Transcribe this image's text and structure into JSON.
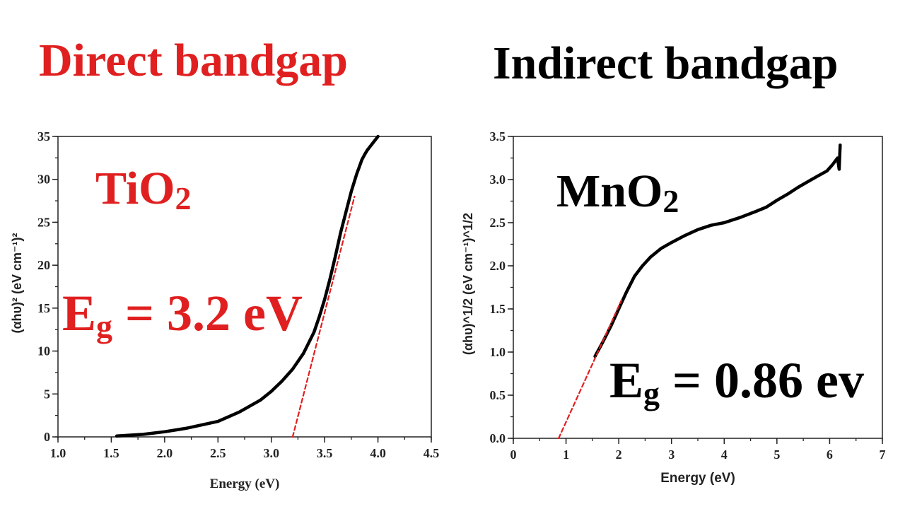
{
  "titles": {
    "left": "Direct bandgap",
    "right": "Indirect bandgap",
    "left_color": "#e02020",
    "right_color": "#000000"
  },
  "chart_data": [
    {
      "type": "line",
      "xlabel": "Energy (eV)",
      "ylabel": "(αhυ)² (eV cm⁻¹)²",
      "xlim": [
        1.0,
        4.5
      ],
      "ylim": [
        0,
        35
      ],
      "xticks": [
        "1.0",
        "1.5",
        "2.0",
        "2.5",
        "3.0",
        "3.5",
        "4.0",
        "4.5"
      ],
      "yticks": [
        "0",
        "5",
        "10",
        "15",
        "20",
        "25",
        "30",
        "35"
      ],
      "grid": false,
      "annotations": {
        "material": "TiO",
        "material_sub": "2",
        "eg_prefix": "E",
        "eg_sub": "g",
        "eg_value": " = 3.2 eV",
        "color": "#e02020"
      },
      "series": [
        {
          "x": [
            1.55,
            1.8,
            2.0,
            2.2,
            2.5,
            2.7,
            2.9,
            3.0,
            3.1,
            3.2,
            3.3,
            3.4,
            3.45,
            3.5,
            3.55,
            3.6,
            3.65,
            3.7,
            3.75,
            3.8,
            3.85,
            3.88,
            3.9,
            3.95,
            4.0
          ],
          "y": [
            0.1,
            0.3,
            0.6,
            1.0,
            1.8,
            2.9,
            4.3,
            5.3,
            6.5,
            7.9,
            9.7,
            12.2,
            14.0,
            16.0,
            18.4,
            21.0,
            23.8,
            26.2,
            28.6,
            30.6,
            32.3,
            33.0,
            33.4,
            34.2,
            35
          ],
          "color": "#000000"
        },
        {
          "x": [
            3.2,
            3.78
          ],
          "y": [
            0,
            28
          ],
          "style": "dashed",
          "color": "#e02020"
        }
      ]
    },
    {
      "type": "line",
      "xlabel": "Energy (eV)",
      "ylabel": "(αhυ)^1/2 (eV cm⁻¹)^1/2",
      "xlim": [
        0,
        7
      ],
      "ylim": [
        0,
        3.5
      ],
      "xticks": [
        "0",
        "1",
        "2",
        "3",
        "4",
        "5",
        "6",
        "7"
      ],
      "yticks": [
        "0.0",
        "0.5",
        "1.0",
        "1.5",
        "2.0",
        "2.5",
        "3.0",
        "3.5"
      ],
      "grid": false,
      "annotations": {
        "material": "MnO",
        "material_sub": "2",
        "eg_prefix": "E",
        "eg_sub": "g",
        "eg_value": " = 0.86 ev",
        "color": "#000000"
      },
      "series": [
        {
          "x": [
            1.55,
            1.7,
            1.85,
            2.0,
            2.15,
            2.3,
            2.45,
            2.6,
            2.8,
            3.0,
            3.25,
            3.5,
            3.75,
            4.0,
            4.3,
            4.6,
            4.8,
            5.0,
            5.2,
            5.4,
            5.6,
            5.8,
            5.95,
            6.05,
            6.15,
            6.18,
            6.2
          ],
          "y": [
            0.95,
            1.12,
            1.3,
            1.5,
            1.7,
            1.88,
            2.0,
            2.1,
            2.2,
            2.27,
            2.35,
            2.42,
            2.47,
            2.5,
            2.56,
            2.63,
            2.68,
            2.76,
            2.83,
            2.91,
            2.98,
            3.05,
            3.1,
            3.17,
            3.25,
            3.12,
            3.4
          ],
          "color": "#000000"
        },
        {
          "x": [
            0.86,
            2.05
          ],
          "y": [
            0,
            1.6
          ],
          "style": "dashed",
          "color": "#e02020"
        }
      ]
    }
  ]
}
